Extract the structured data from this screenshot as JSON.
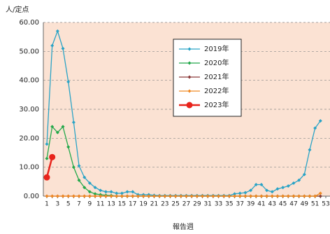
{
  "chart_data": {
    "type": "line",
    "y_label": "人/定点",
    "x_label": "報告週",
    "categories": [
      "1",
      null,
      "3",
      null,
      "5",
      null,
      "7",
      null,
      "9",
      null,
      "11",
      null,
      "13",
      null,
      "15",
      null,
      "17",
      null,
      "19",
      null,
      "21",
      null,
      "23",
      null,
      "25",
      null,
      "27",
      null,
      "29",
      null,
      "31",
      null,
      "33",
      null,
      "35",
      null,
      "37",
      null,
      "39",
      null,
      "41",
      null,
      "43",
      null,
      "45",
      null,
      "47",
      null,
      "49",
      null,
      "51",
      null,
      "53"
    ],
    "ylim": [
      0,
      60
    ],
    "yticks": [
      {
        "value": 0,
        "label": "0.00"
      },
      {
        "value": 10,
        "label": "10.00"
      },
      {
        "value": 20,
        "label": "20.00"
      },
      {
        "value": 30,
        "label": "30.00"
      },
      {
        "value": 40,
        "label": "40.00"
      },
      {
        "value": 50,
        "label": "50.00"
      },
      {
        "value": 60,
        "label": "60.00"
      }
    ],
    "grid": true,
    "legend": "upper-center",
    "series": [
      {
        "name": "2019年",
        "color": "#29a3c6",
        "values": [
          18,
          52,
          57,
          51,
          39.5,
          25.5,
          10.5,
          6.5,
          4.5,
          3,
          2,
          1.5,
          1.5,
          1,
          1,
          1.5,
          1.5,
          0.5,
          0.5,
          0.5,
          0.3,
          0.2,
          0.2,
          0.2,
          0.2,
          0.2,
          0.2,
          0.2,
          0.2,
          0.2,
          0.2,
          0.2,
          0.2,
          0.2,
          0.2,
          0.8,
          1,
          1.2,
          2,
          4,
          4,
          2,
          1.5,
          2.5,
          3,
          3.5,
          4.5,
          5.5,
          7.5,
          16,
          23.5,
          26,
          null
        ]
      },
      {
        "name": "2020年",
        "color": "#23a84a",
        "values": [
          13,
          24,
          22,
          24,
          17,
          10,
          5.5,
          3,
          1.5,
          0.8,
          0.5,
          0.3,
          0.2,
          0,
          0,
          0,
          0,
          0,
          0,
          0,
          0,
          0,
          0,
          0,
          0,
          0,
          0,
          0,
          0,
          0,
          0,
          0,
          0,
          0,
          0,
          0,
          0,
          0,
          0,
          0,
          0,
          0,
          0,
          0,
          0,
          0,
          0,
          0,
          0,
          0,
          0,
          0,
          null
        ]
      },
      {
        "name": "2021年",
        "color": "#8c3b3b",
        "values": [
          0,
          0,
          0,
          0,
          0,
          0,
          0,
          0,
          0,
          0,
          0,
          0,
          0,
          0,
          0,
          0,
          0,
          0,
          0,
          0,
          0,
          0,
          0,
          0,
          0,
          0,
          0,
          0,
          0,
          0,
          0,
          0,
          0,
          0,
          0,
          0,
          0,
          0,
          0,
          0,
          0,
          0,
          0,
          0,
          0,
          0,
          0,
          0,
          0,
          0,
          0,
          0,
          null
        ]
      },
      {
        "name": "2022年",
        "color": "#f08a24",
        "values": [
          0,
          0,
          0,
          0,
          0,
          0,
          0,
          0,
          0,
          0,
          0,
          0,
          0,
          0,
          0,
          0,
          0,
          0,
          0,
          0,
          0,
          0,
          0,
          0,
          0,
          0,
          0,
          0,
          0,
          0,
          0,
          0,
          0,
          0,
          0,
          0,
          0,
          0,
          0,
          0,
          0,
          0,
          0,
          0,
          0,
          0,
          0,
          0,
          0,
          0,
          0,
          1,
          null
        ]
      },
      {
        "name": "2023年",
        "color": "#e8241c",
        "values": [
          6.5,
          13.5,
          null,
          null,
          null,
          null,
          null,
          null,
          null,
          null,
          null,
          null,
          null,
          null,
          null,
          null,
          null,
          null,
          null,
          null,
          null,
          null,
          null,
          null,
          null,
          null,
          null,
          null,
          null,
          null,
          null,
          null,
          null,
          null,
          null,
          null,
          null,
          null,
          null,
          null,
          null,
          null,
          null,
          null,
          null,
          null,
          null,
          null,
          null,
          null,
          null,
          null,
          null
        ]
      }
    ]
  }
}
